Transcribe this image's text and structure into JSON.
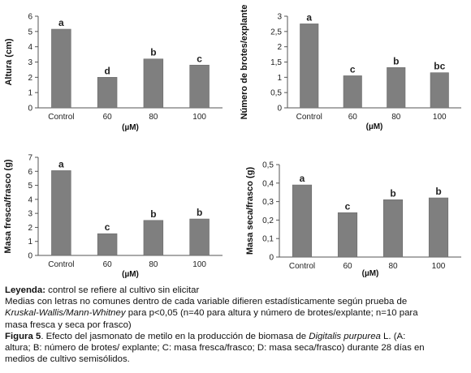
{
  "chart_data": [
    {
      "type": "bar",
      "categories": [
        "Control",
        "60",
        "80",
        "100"
      ],
      "values": [
        5.15,
        2.0,
        3.2,
        2.8
      ],
      "letters": [
        "a",
        "d",
        "b",
        "c"
      ],
      "ylabel": "Altura (cm)",
      "xlabel": "(µM)",
      "ylim": [
        0,
        6
      ],
      "yticks": [
        "0",
        "1",
        "2",
        "3",
        "4",
        "5",
        "6"
      ],
      "bar_color": "#7f7f7f"
    },
    {
      "type": "bar",
      "categories": [
        "Control",
        "60",
        "80",
        "100"
      ],
      "values": [
        2.75,
        1.05,
        1.32,
        1.15
      ],
      "letters": [
        "a",
        "c",
        "b",
        "bc"
      ],
      "ylabel": "Número de brotes/explante",
      "xlabel": "(µM)",
      "ylim": [
        0,
        3
      ],
      "yticks": [
        "0",
        "0,5",
        "1",
        "1,5",
        "2",
        "2,5",
        "3"
      ],
      "bar_color": "#7f7f7f"
    },
    {
      "type": "bar",
      "categories": [
        "Control",
        "60",
        "80",
        "100"
      ],
      "values": [
        6.05,
        1.55,
        2.5,
        2.6
      ],
      "letters": [
        "a",
        "c",
        "b",
        "b"
      ],
      "ylabel": "Masa fresca/frasco (g)",
      "xlabel": "(µM)",
      "ylim": [
        0,
        7
      ],
      "yticks": [
        "0",
        "1",
        "2",
        "3",
        "4",
        "5",
        "6",
        "7"
      ],
      "bar_color": "#7f7f7f"
    },
    {
      "type": "bar",
      "categories": [
        "Control",
        "60",
        "80",
        "100"
      ],
      "values": [
        0.39,
        0.24,
        0.31,
        0.32
      ],
      "letters": [
        "a",
        "c",
        "b",
        "b"
      ],
      "ylabel": "Masa seca/frasco (g)",
      "xlabel": "(µM)",
      "ylim": [
        0,
        0.5
      ],
      "yticks": [
        "0",
        "0,1",
        "0,2",
        "0,3",
        "0,4",
        "0,5"
      ],
      "bar_color": "#7f7f7f"
    }
  ],
  "caption": {
    "legend_label": "Leyenda:",
    "legend_text": " control se refiere al cultivo sin elicitar",
    "line2_a": "Medias con letras no comunes dentro de cada variable difieren estadísticamente según prueba de",
    "line3_italic": "Kruskal-Wallis/Mann-Whitney",
    "line3_rest": " para p<0,05 (n=40 para altura y número de brotes/explante; n=10 para",
    "line4": "masa fresca y seca por frasco)",
    "fig_label": "Figura 5",
    "fig_text_a": ". Efecto del jasmonato de metilo en la producción de biomasa de ",
    "fig_italic": "Digitalis purpurea",
    "fig_text_b": " L. (A:",
    "fig_line2": "altura; B: número de brotes/ explante; C: masa fresca/frasco; D: masa seca/frasco) durante 28 días en",
    "fig_line3": "medios de cultivo semisólidos."
  }
}
